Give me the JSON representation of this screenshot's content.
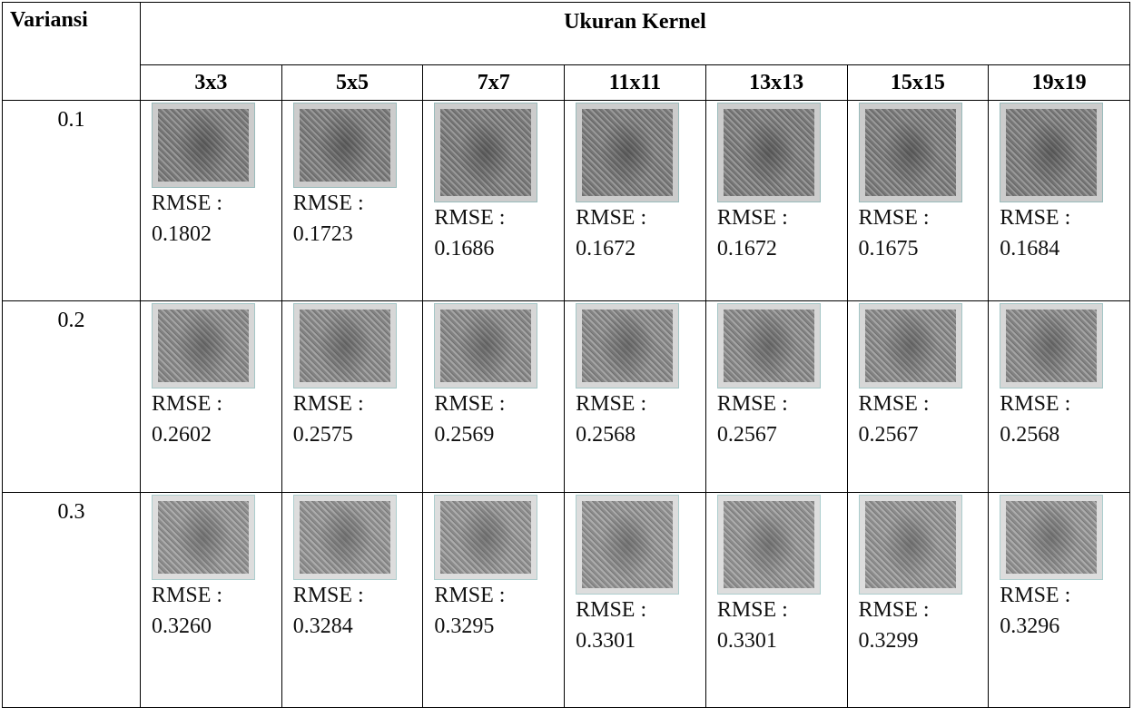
{
  "table": {
    "header": {
      "variance": "Variansi",
      "kernel_size": "Ukuran Kernel",
      "sizes": [
        "3x3",
        "5x5",
        "7x7",
        "11x11",
        "13x13",
        "15x15",
        "19x19"
      ]
    },
    "rows": [
      {
        "variance": "0.1",
        "cells": [
          {
            "label": "RMSE :",
            "value": "0.1802"
          },
          {
            "label": "RMSE :",
            "value": "0.1723"
          },
          {
            "label": "RMSE :",
            "value": "0.1686"
          },
          {
            "label": "RMSE :",
            "value": "0.1672"
          },
          {
            "label": "RMSE :",
            "value": "0.1672"
          },
          {
            "label": "RMSE :",
            "value": "0.1675"
          },
          {
            "label": "RMSE :",
            "value": "0.1684"
          }
        ]
      },
      {
        "variance": "0.2",
        "cells": [
          {
            "label": "RMSE :",
            "value": "0.2602"
          },
          {
            "label": "RMSE :",
            "value": "0.2575"
          },
          {
            "label": "RMSE :",
            "value": "0.2569"
          },
          {
            "label": "RMSE :",
            "value": "0.2568"
          },
          {
            "label": "RMSE :",
            "value": "0.2567"
          },
          {
            "label": "RMSE :",
            "value": "0.2567"
          },
          {
            "label": "RMSE :",
            "value": "0.2568"
          }
        ]
      },
      {
        "variance": "0.3",
        "cells": [
          {
            "label": "RMSE :",
            "value": "0.3260"
          },
          {
            "label": "RMSE :",
            "value": "0.3284"
          },
          {
            "label": "RMSE :",
            "value": "0.3295"
          },
          {
            "label": "RMSE :",
            "value": "0.3301"
          },
          {
            "label": "RMSE :",
            "value": "0.3301"
          },
          {
            "label": "RMSE :",
            "value": "0.3299"
          },
          {
            "label": "RMSE :",
            "value": "0.3296"
          }
        ]
      }
    ]
  }
}
